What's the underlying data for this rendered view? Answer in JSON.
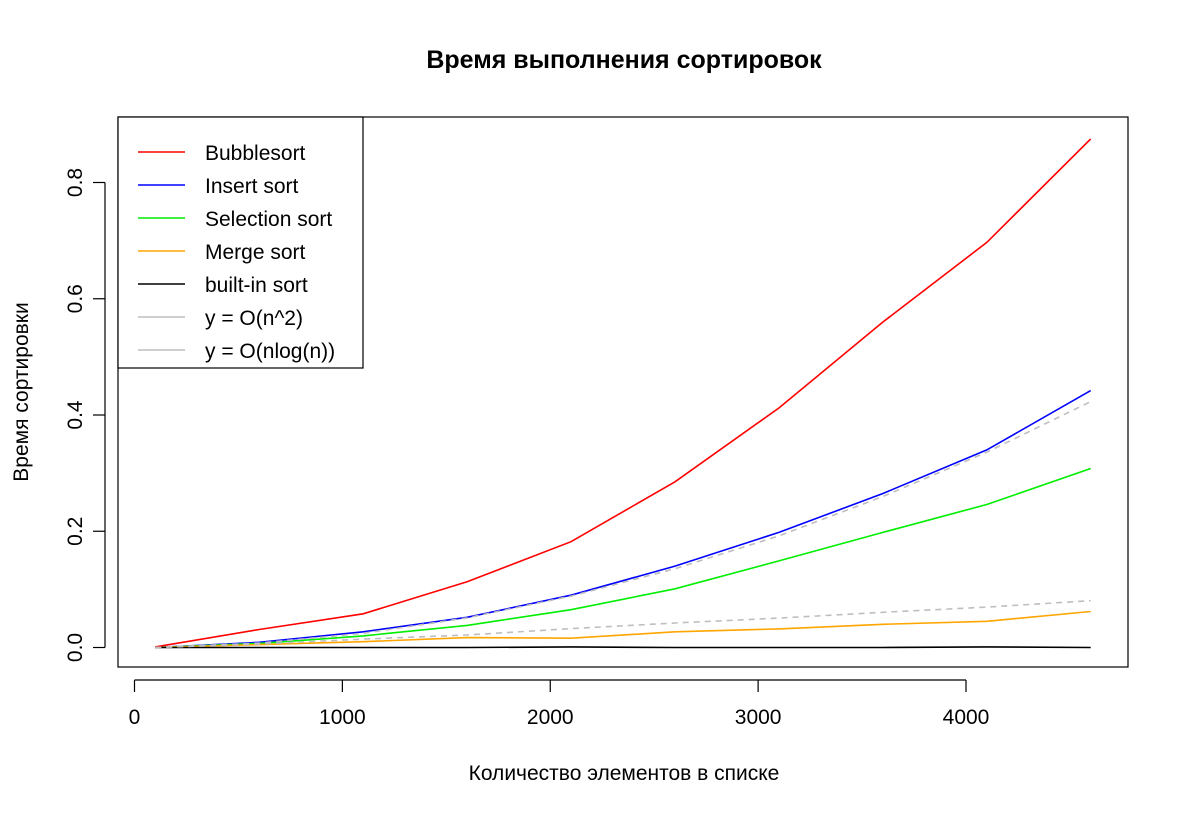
{
  "chart_data": {
    "type": "line",
    "title": "Время выполнения сортировок",
    "xlabel": "Количество элементов в списке",
    "ylabel": "Время сортировки",
    "xlim": [
      0,
      4700
    ],
    "ylim": [
      0,
      0.92
    ],
    "x_ticks": [
      0,
      1000,
      2000,
      3000,
      4000
    ],
    "y_ticks": [
      0.0,
      0.2,
      0.4,
      0.6,
      0.8
    ],
    "x_tick_labels": [
      "0",
      "1000",
      "2000",
      "3000",
      "4000"
    ],
    "y_tick_labels": [
      "0.0",
      "0.2",
      "0.4",
      "0.6",
      "0.8"
    ],
    "legend_position": "top-left",
    "x": [
      100,
      600,
      1100,
      1600,
      2100,
      2600,
      3100,
      3600,
      4100,
      4600
    ],
    "series": [
      {
        "name": "Bubblesort",
        "color": "#ff0000",
        "dashed": false,
        "values": [
          0.001,
          0.031,
          0.058,
          0.113,
          0.182,
          0.285,
          0.412,
          0.56,
          0.697,
          0.875
        ]
      },
      {
        "name": "Insert sort",
        "color": "#0000ff",
        "dashed": false,
        "values": [
          0.0,
          0.009,
          0.027,
          0.052,
          0.09,
          0.14,
          0.198,
          0.265,
          0.34,
          0.442
        ]
      },
      {
        "name": "Selection sort",
        "color": "#00ee00",
        "dashed": false,
        "values": [
          0.0,
          0.007,
          0.02,
          0.038,
          0.065,
          0.101,
          0.149,
          0.198,
          0.246,
          0.308
        ]
      },
      {
        "name": "Merge sort",
        "color": "#ffa500",
        "dashed": false,
        "values": [
          0.0,
          0.005,
          0.01,
          0.017,
          0.016,
          0.027,
          0.032,
          0.04,
          0.045,
          0.062
        ]
      },
      {
        "name": "built-in sort",
        "color": "#000000",
        "dashed": false,
        "values": [
          0.0,
          0.0,
          0.0,
          0.0,
          0.001,
          0.0,
          0.0,
          0.0,
          0.001,
          0.0
        ]
      },
      {
        "name": "y = O(n^2)",
        "color": "#bebebe",
        "dashed": true,
        "values": [
          0.0,
          0.0075,
          0.0245,
          0.051,
          0.0884,
          0.1355,
          0.192,
          0.2598,
          0.336,
          0.423
        ]
      },
      {
        "name": "y = O(nlog(n))",
        "color": "#bebebe",
        "dashed": true,
        "values": [
          0.0,
          0.006,
          0.0145,
          0.0215,
          0.0325,
          0.0422,
          0.0505,
          0.0605,
          0.0695,
          0.0805
        ]
      }
    ]
  }
}
